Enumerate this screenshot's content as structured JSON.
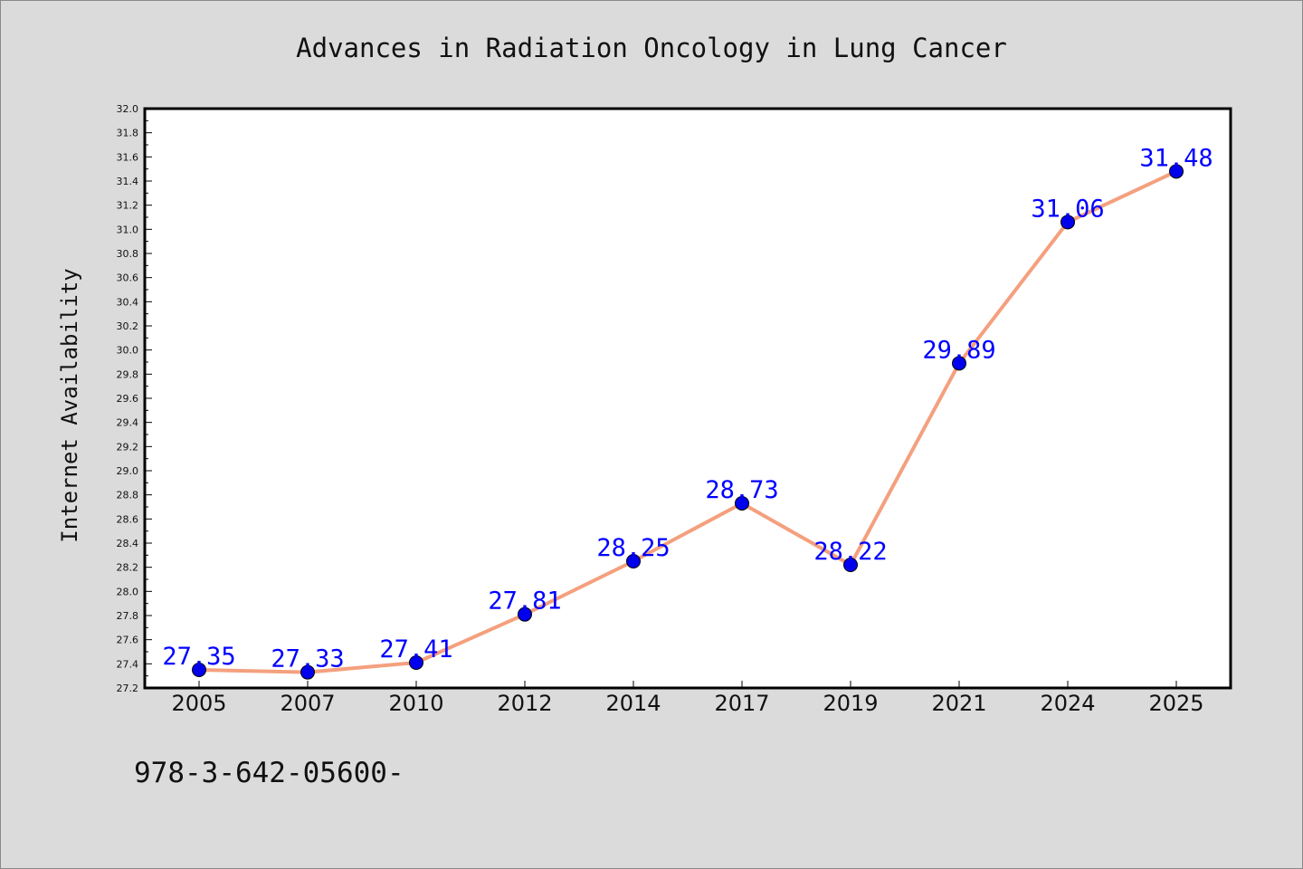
{
  "chart_data": {
    "type": "line",
    "title": "Advances in Radiation Oncology in Lung Cancer",
    "xlabel": "",
    "ylabel": "Internet Availability",
    "categories": [
      "2005",
      "2007",
      "2010",
      "2012",
      "2014",
      "2017",
      "2019",
      "2021",
      "2024",
      "2025"
    ],
    "series": [
      {
        "values": [
          27.35,
          27.33,
          27.41,
          27.81,
          28.25,
          28.73,
          28.22,
          29.89,
          31.06,
          31.48
        ],
        "line_color": "#f4a07e",
        "marker_color": "#0000ee"
      }
    ],
    "data_labels": [
      "27.35",
      "27.33",
      "27.41",
      "27.81",
      "28.25",
      "28.73",
      "28.22",
      "29.89",
      "31.06",
      "31.48"
    ],
    "ylim": [
      27.2,
      32.0
    ],
    "yticks": [
      "27.2",
      "27.4",
      "27.6",
      "27.8",
      "28.0",
      "28.2",
      "28.4",
      "28.6",
      "28.8",
      "29.0",
      "29.2",
      "29.4",
      "29.6",
      "29.8",
      "30.0",
      "30.2",
      "30.4",
      "30.6",
      "30.8",
      "31.0",
      "31.2",
      "31.4",
      "31.6",
      "31.8",
      "32.0"
    ],
    "grid": false,
    "legend": "none",
    "label_color": "#0000ff"
  },
  "footer": {
    "isbn_text": "978-3-642-05600-"
  }
}
